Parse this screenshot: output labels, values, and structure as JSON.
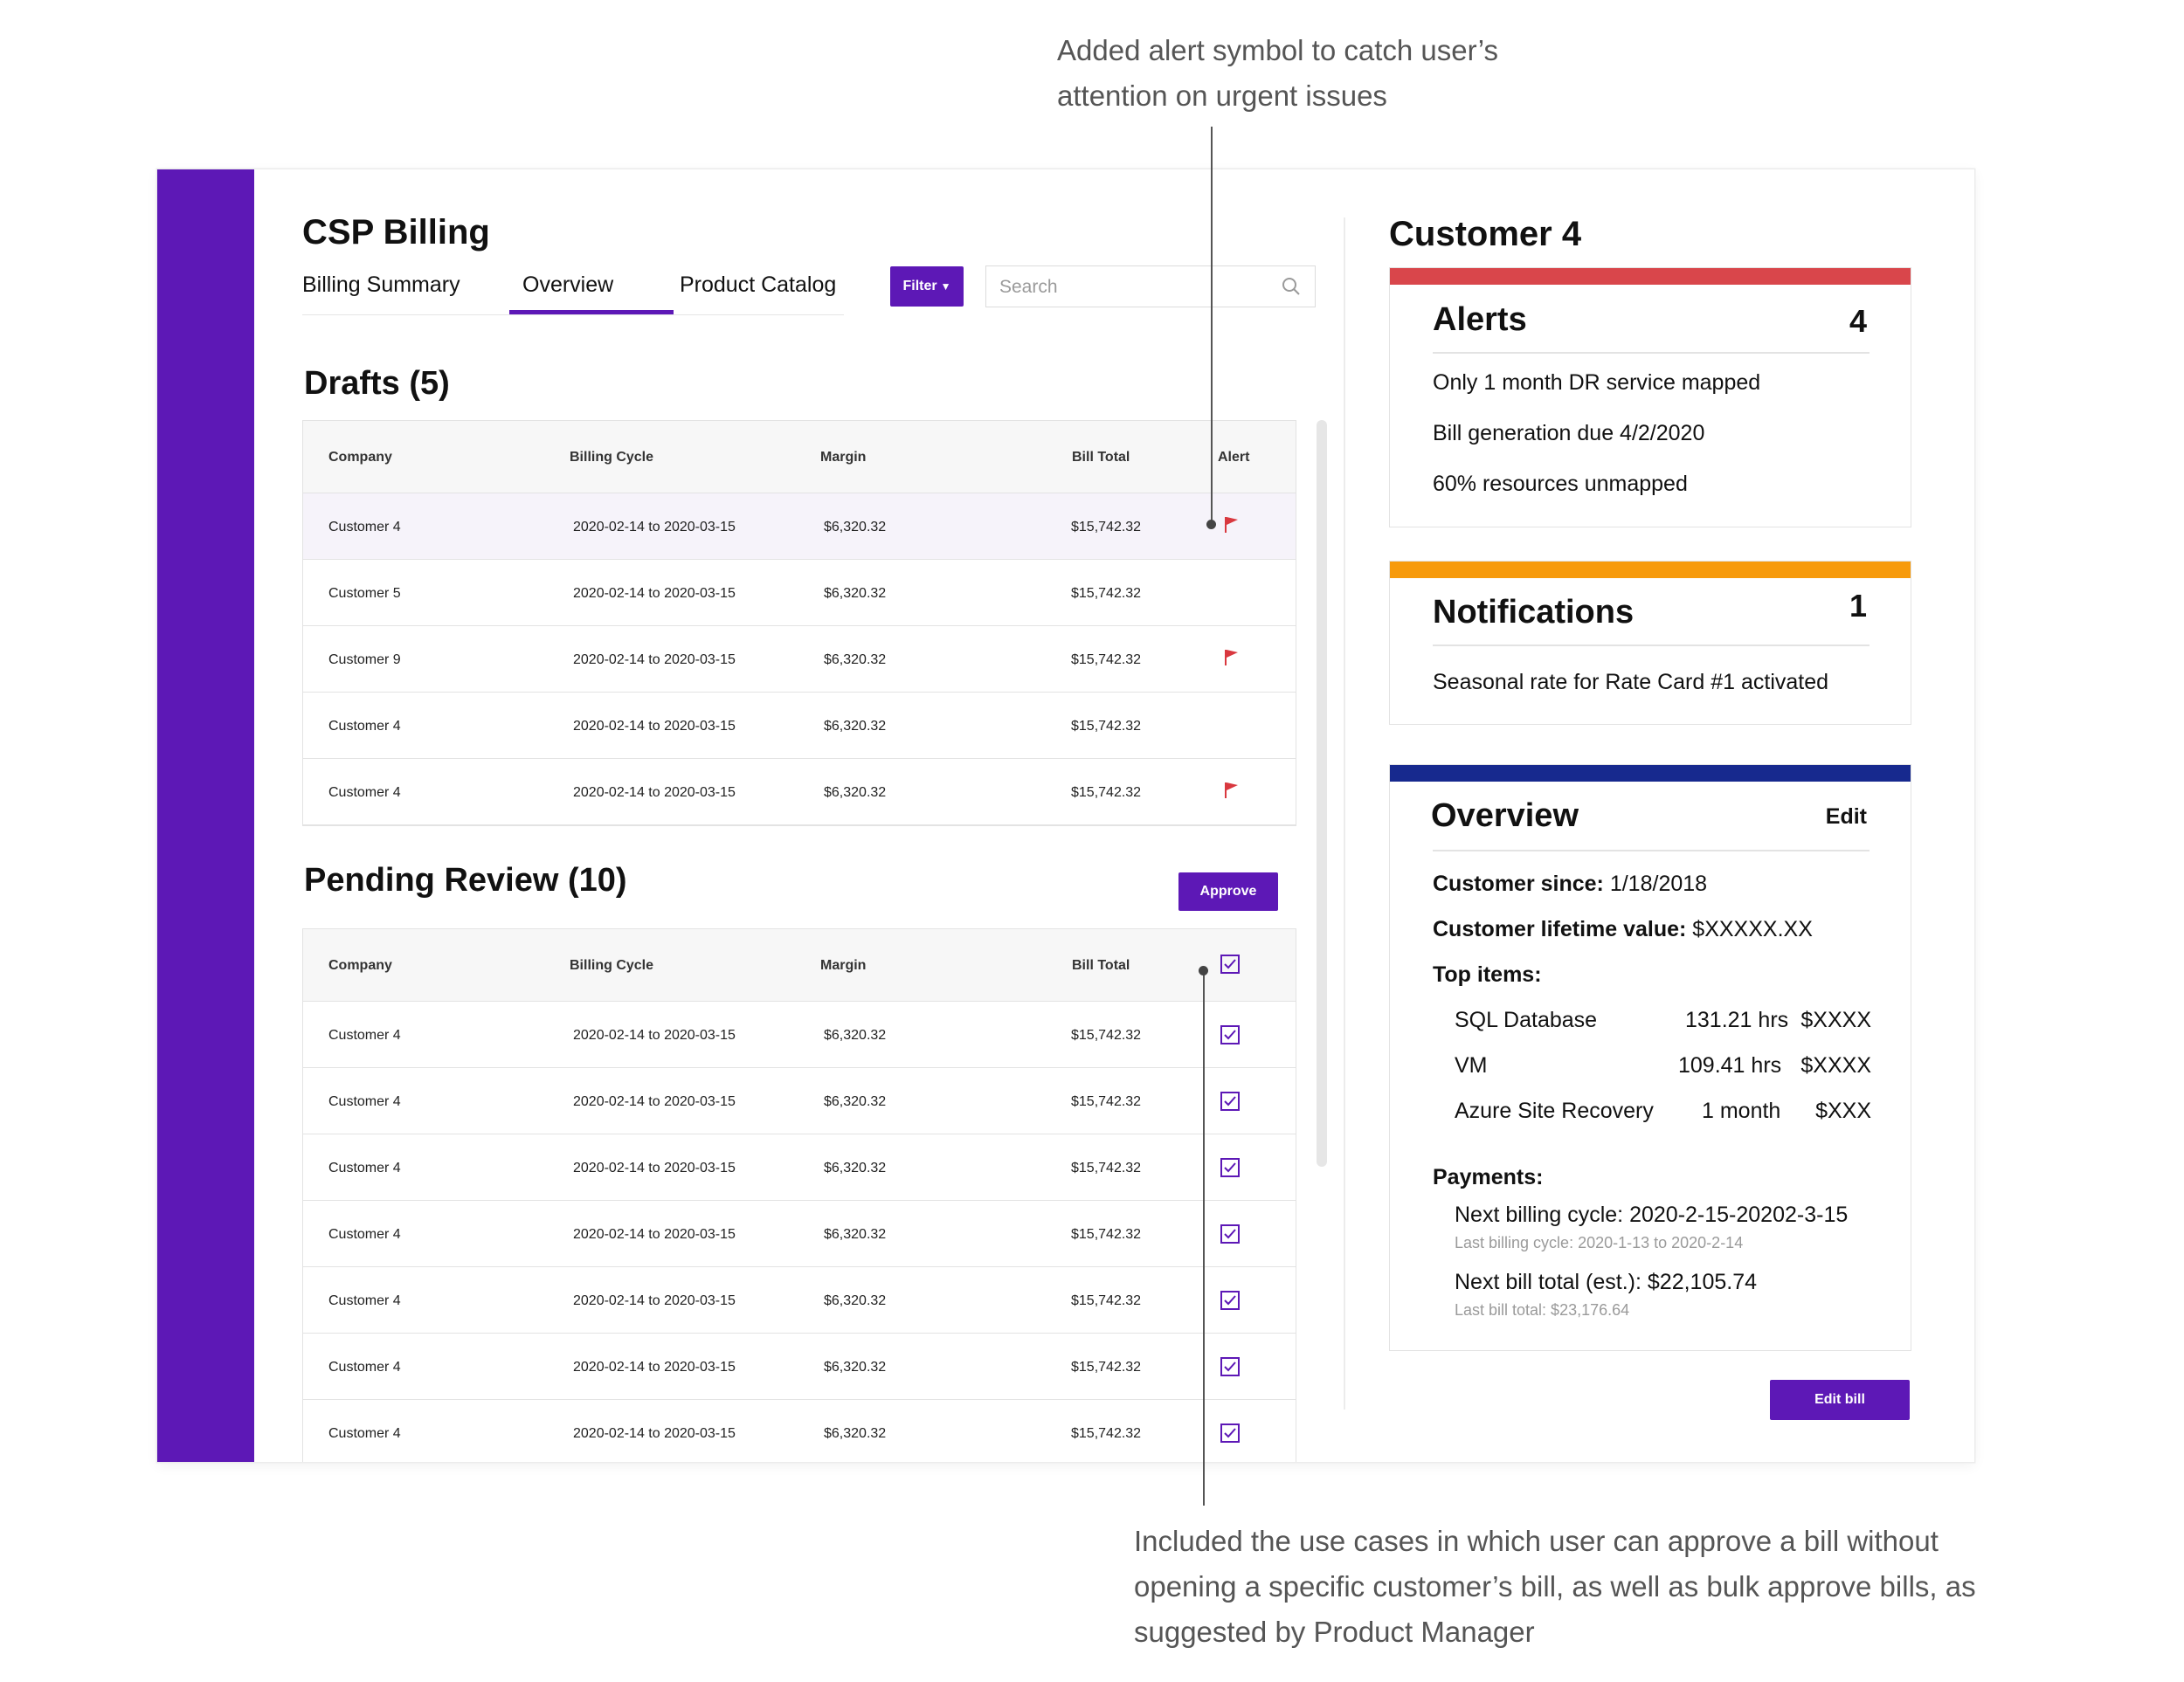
{
  "annotations": {
    "top": [
      "Added alert symbol to catch user’s",
      "attention on urgent issues"
    ],
    "bottom": [
      "Included the use cases in which user can approve a bill without",
      "opening a specific customer’s bill, as well as bulk approve bills, as",
      "suggested by Product Manager"
    ]
  },
  "app": {
    "title": "CSP Billing",
    "tabs": [
      {
        "label": "Billing Summary",
        "active": false
      },
      {
        "label": "Overview",
        "active": true
      },
      {
        "label": "Product Catalog",
        "active": false
      }
    ],
    "filter_label": "Filter",
    "search_placeholder": "Search"
  },
  "drafts": {
    "title": "Drafts (5)",
    "columns": [
      "Company",
      "Billing Cycle",
      "Margin",
      "Bill Total",
      "Alert"
    ],
    "rows": [
      {
        "company": "Customer 4",
        "cycle": "2020-02-14 to 2020-03-15",
        "margin": "$6,320.32",
        "total": "$15,742.32",
        "alert": true
      },
      {
        "company": "Customer 5",
        "cycle": "2020-02-14 to 2020-03-15",
        "margin": "$6,320.32",
        "total": "$15,742.32",
        "alert": false
      },
      {
        "company": "Customer 9",
        "cycle": "2020-02-14 to 2020-03-15",
        "margin": "$6,320.32",
        "total": "$15,742.32",
        "alert": true
      },
      {
        "company": "Customer 4",
        "cycle": "2020-02-14 to 2020-03-15",
        "margin": "$6,320.32",
        "total": "$15,742.32",
        "alert": false
      },
      {
        "company": "Customer 4",
        "cycle": "2020-02-14 to 2020-03-15",
        "margin": "$6,320.32",
        "total": "$15,742.32",
        "alert": true
      }
    ]
  },
  "pending": {
    "title": "Pending Review (10)",
    "approve_label": "Approve",
    "columns": [
      "Company",
      "Billing Cycle",
      "Margin",
      "Bill Total"
    ],
    "rows": [
      {
        "company": "Customer 4",
        "cycle": "2020-02-14 to 2020-03-15",
        "margin": "$6,320.32",
        "total": "$15,742.32",
        "checked": true
      },
      {
        "company": "Customer 4",
        "cycle": "2020-02-14 to 2020-03-15",
        "margin": "$6,320.32",
        "total": "$15,742.32",
        "checked": true
      },
      {
        "company": "Customer 4",
        "cycle": "2020-02-14 to 2020-03-15",
        "margin": "$6,320.32",
        "total": "$15,742.32",
        "checked": true
      },
      {
        "company": "Customer 4",
        "cycle": "2020-02-14 to 2020-03-15",
        "margin": "$6,320.32",
        "total": "$15,742.32",
        "checked": true
      },
      {
        "company": "Customer 4",
        "cycle": "2020-02-14 to 2020-03-15",
        "margin": "$6,320.32",
        "total": "$15,742.32",
        "checked": true
      },
      {
        "company": "Customer 4",
        "cycle": "2020-02-14 to 2020-03-15",
        "margin": "$6,320.32",
        "total": "$15,742.32",
        "checked": true
      },
      {
        "company": "Customer 4",
        "cycle": "2020-02-14 to 2020-03-15",
        "margin": "$6,320.32",
        "total": "$15,742.32",
        "checked": true
      }
    ]
  },
  "customer": {
    "name": "Customer 4",
    "alerts": {
      "title": "Alerts",
      "count": "4",
      "items": [
        "Only 1 month DR service mapped",
        "Bill generation due 4/2/2020",
        "60% resources unmapped"
      ]
    },
    "notifications": {
      "title": "Notifications",
      "count": "1",
      "items": [
        "Seasonal rate for Rate Card #1 activated"
      ]
    },
    "overview": {
      "title": "Overview",
      "edit_label": "Edit",
      "since_label": "Customer since:",
      "since_value": " 1/18/2018",
      "ltv_label": "Customer lifetime value:",
      "ltv_value": " $XXXXX.XX",
      "top_items_label": "Top items:",
      "top_items": [
        {
          "name": "SQL Database",
          "usage": "131.21 hrs",
          "cost": "$XXXX"
        },
        {
          "name": "VM",
          "usage": "109.41 hrs",
          "cost": "$XXXX"
        },
        {
          "name": "Azure Site Recovery",
          "usage": "1 month",
          "cost": "$XXX"
        }
      ],
      "payments_label": "Payments:",
      "next_cycle": "Next billing cycle: 2020-2-15-20202-3-15",
      "last_cycle": "Last billing cycle: 2020-1-13 to 2020-2-14",
      "next_total": "Next bill total (est.): $22,105.74",
      "last_total": "Last bill total: $23,176.64"
    },
    "edit_bill_label": "Edit bill"
  },
  "colors": {
    "accent": "#5d18b6",
    "alert_bar": "#d9464b",
    "notif_bar": "#f79a0b",
    "overview_bar": "#17298e",
    "flag": "#d9383f"
  }
}
